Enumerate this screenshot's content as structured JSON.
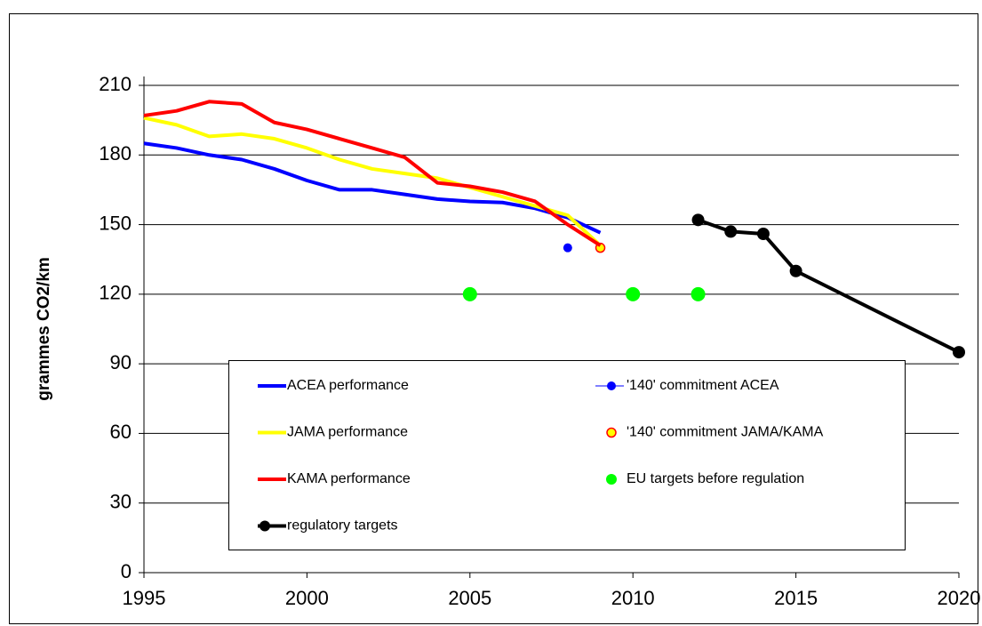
{
  "chart_data": {
    "type": "line",
    "y_label": "grammes CO2/km",
    "xlim": [
      1995,
      2020
    ],
    "xticks": [
      1995,
      2000,
      2005,
      2010,
      2015,
      2020
    ],
    "ylim": [
      0,
      210
    ],
    "yticks": [
      0,
      30,
      60,
      90,
      120,
      150,
      180,
      210
    ],
    "grid": true,
    "legend": "lower center",
    "series": [
      {
        "name": "ACEA performance",
        "color": "#0000ff",
        "style": "line",
        "x": [
          1995,
          1996,
          1997,
          1998,
          1999,
          2000,
          2001,
          2002,
          2003,
          2004,
          2005,
          2006,
          2007,
          2008,
          2009
        ],
        "values": [
          185,
          183,
          180,
          178,
          174,
          169,
          165,
          165,
          163,
          161,
          160,
          159.5,
          157,
          153,
          146.5
        ]
      },
      {
        "name": "'140' commitment ACEA",
        "color": "#0000ff",
        "style": "points",
        "x": [
          2008
        ],
        "values": [
          140
        ]
      },
      {
        "name": "JAMA performance",
        "color": "#ffff00",
        "style": "line",
        "x": [
          1995,
          1996,
          1997,
          1998,
          1999,
          2000,
          2001,
          2002,
          2003,
          2004,
          2005,
          2006,
          2007,
          2008,
          2009
        ],
        "values": [
          196,
          193,
          188,
          189,
          187,
          183,
          178,
          174,
          172,
          170,
          166,
          162,
          158,
          154,
          141
        ]
      },
      {
        "name": "'140' commitment JAMA/KAMA",
        "color": "#ffff00",
        "edgecolor": "#ff0000",
        "style": "points",
        "x": [
          2009
        ],
        "values": [
          140
        ]
      },
      {
        "name": "KAMA performance",
        "color": "#ff0000",
        "style": "line",
        "x": [
          1995,
          1996,
          1997,
          1998,
          1999,
          2000,
          2001,
          2002,
          2003,
          2004,
          2005,
          2006,
          2007,
          2008,
          2009
        ],
        "values": [
          197,
          199,
          203,
          202,
          194,
          191,
          187,
          183,
          179,
          168,
          166.5,
          164,
          160,
          150,
          141
        ]
      },
      {
        "name": "EU targets before regulation",
        "color": "#00ff00",
        "style": "points",
        "x": [
          2005,
          2010,
          2012
        ],
        "values": [
          120,
          120,
          120
        ]
      },
      {
        "name": "regulatory targets",
        "color": "#000000",
        "style": "line+points",
        "x": [
          2012,
          2013,
          2014,
          2015,
          2020
        ],
        "values": [
          152,
          147,
          146,
          130,
          95
        ]
      }
    ]
  }
}
